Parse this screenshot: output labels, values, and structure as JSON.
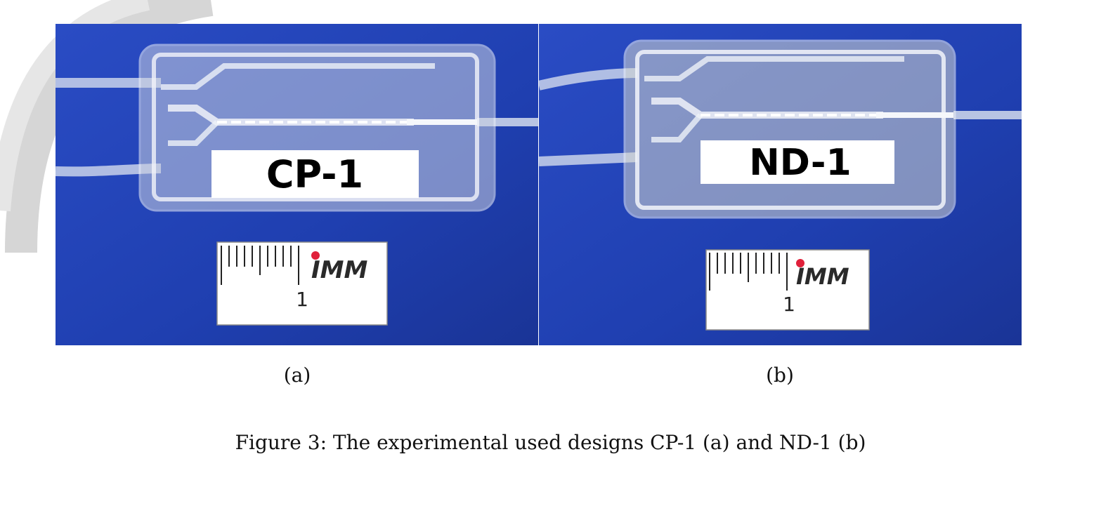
{
  "figure": {
    "caption": "Figure 3: The experimental used designs CP-1 (a) and ND-1 (b)",
    "panels": [
      {
        "subcaption": "(a)",
        "device_label": "CP-1",
        "scale_number": "1",
        "scale_logo": "IMM"
      },
      {
        "subcaption": "(b)",
        "device_label": "ND-1",
        "scale_number": "1",
        "scale_logo": "IMM"
      }
    ]
  },
  "colors": {
    "background_blue": "#1f3fb0",
    "watermark": "#d6d6d6",
    "logo_dot": "#e0203a"
  }
}
